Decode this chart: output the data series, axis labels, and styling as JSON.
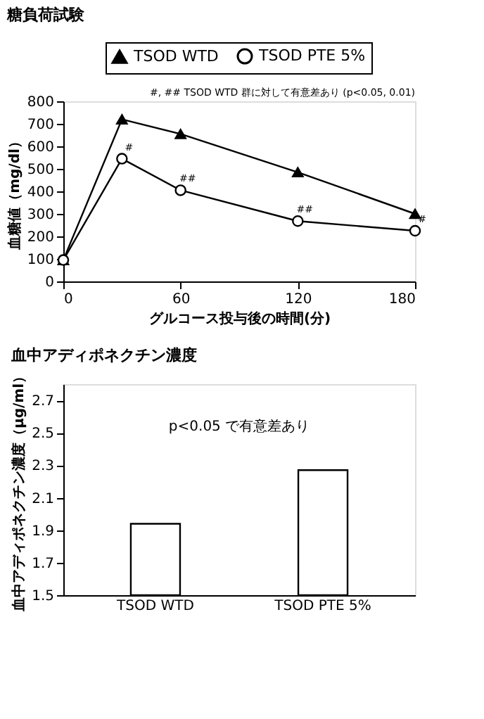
{
  "chart_data": [
    {
      "type": "line",
      "title": "糖負荷試験",
      "xlabel": "グルコース投与後の時間(分)",
      "ylabel": "血糖値（mg/dl）",
      "x": [
        0,
        30,
        60,
        120,
        180
      ],
      "series": [
        {
          "name": "TSOD WTD",
          "color": "#000000",
          "marker": "triangle",
          "values": [
            95,
            720,
            655,
            485,
            300
          ]
        },
        {
          "name": "TSOD PTE 5%",
          "color": "#000000",
          "marker": "circle",
          "values": [
            95,
            545,
            405,
            268,
            225
          ]
        }
      ],
      "xlim": [
        0,
        180
      ],
      "xticks": [
        0,
        60,
        120,
        180
      ],
      "ylim": [
        0,
        800
      ],
      "yticks": [
        0,
        100,
        200,
        300,
        400,
        500,
        600,
        700,
        800
      ],
      "grid": false,
      "legend": "top",
      "line_style": "solid",
      "annotations": [
        "#, ## TSOD WTD 群に対して有意差あり (p<0.05, 0.01)",
        {
          "text": "#",
          "x": 30,
          "y": 545
        },
        {
          "text": "##",
          "x": 60,
          "y": 405
        },
        {
          "text": "##",
          "x": 120,
          "y": 268
        },
        {
          "text": "#",
          "x": 180,
          "y": 225
        }
      ]
    },
    {
      "type": "bar",
      "title": "血中アディポネクチン濃度",
      "ylabel": "血中アディポネクチン濃度（μg/ml）",
      "categories": [
        "TSOD WTD",
        "TSOD PTE 5%"
      ],
      "values": [
        1.94,
        2.27
      ],
      "color": "#ffffff",
      "ylim": [
        1.5,
        2.8
      ],
      "yticks": [
        1.5,
        1.7,
        1.9,
        2.1,
        2.3,
        2.5,
        2.7
      ],
      "grid": false,
      "legend": false,
      "annotations": [
        "p<0.05 で有意差あり"
      ]
    }
  ]
}
